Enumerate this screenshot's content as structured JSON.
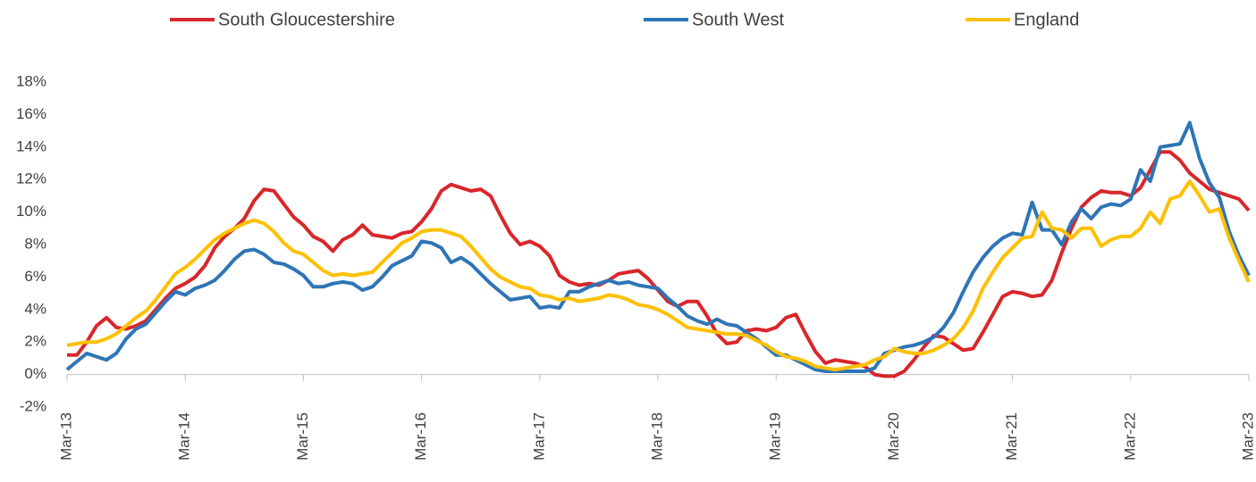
{
  "chart_data": {
    "type": "line",
    "categories": [
      "Mar-13",
      null,
      null,
      null,
      null,
      null,
      null,
      null,
      null,
      null,
      null,
      null,
      "Mar-14",
      null,
      null,
      null,
      null,
      null,
      null,
      null,
      null,
      null,
      null,
      null,
      "Mar-15",
      null,
      null,
      null,
      null,
      null,
      null,
      null,
      null,
      null,
      null,
      null,
      "Mar-16",
      null,
      null,
      null,
      null,
      null,
      null,
      null,
      null,
      null,
      null,
      null,
      "Mar-17",
      null,
      null,
      null,
      null,
      null,
      null,
      null,
      null,
      null,
      null,
      null,
      "Mar-18",
      null,
      null,
      null,
      null,
      null,
      null,
      null,
      null,
      null,
      null,
      null,
      "Mar-19",
      null,
      null,
      null,
      null,
      null,
      null,
      null,
      null,
      null,
      null,
      null,
      "Mar-20",
      null,
      null,
      null,
      null,
      null,
      null,
      null,
      null,
      null,
      null,
      null,
      "Mar-21",
      null,
      null,
      null,
      null,
      null,
      null,
      null,
      null,
      null,
      null,
      null,
      "Mar-22",
      null,
      null,
      null,
      null,
      null,
      null,
      null,
      null,
      null,
      null,
      null,
      "Mar-23"
    ],
    "series": [
      {
        "name": "South Gloucestershire",
        "color": "#d9262a",
        "values": [
          1.2,
          1.2,
          2.0,
          3.0,
          3.5,
          2.9,
          2.8,
          3.0,
          3.3,
          4.0,
          4.7,
          5.3,
          5.6,
          6.0,
          6.7,
          7.8,
          8.5,
          9.0,
          9.6,
          10.7,
          11.4,
          11.3,
          10.5,
          9.7,
          9.2,
          8.5,
          8.2,
          7.6,
          8.3,
          8.6,
          9.2,
          8.6,
          8.5,
          8.4,
          8.7,
          8.8,
          9.4,
          10.2,
          11.3,
          11.7,
          11.5,
          11.3,
          11.4,
          11.0,
          9.8,
          8.7,
          8.0,
          8.2,
          7.9,
          7.3,
          6.1,
          5.7,
          5.5,
          5.6,
          5.5,
          5.8,
          6.2,
          6.3,
          6.4,
          5.9,
          5.2,
          4.5,
          4.2,
          4.5,
          4.5,
          3.6,
          2.5,
          1.9,
          2.0,
          2.7,
          2.8,
          2.7,
          2.9,
          3.5,
          3.7,
          2.5,
          1.4,
          0.7,
          0.9,
          0.8,
          0.7,
          0.5,
          0.0,
          -0.1,
          -0.1,
          0.2,
          0.9,
          1.7,
          2.4,
          2.3,
          1.9,
          1.5,
          1.6,
          2.6,
          3.7,
          4.8,
          5.1,
          5.0,
          4.8,
          4.9,
          5.8,
          7.5,
          9.0,
          10.3,
          10.9,
          11.3,
          11.2,
          11.2,
          11.0,
          11.5,
          12.6,
          13.7,
          13.7,
          13.2,
          12.4,
          11.9,
          11.4,
          11.2,
          11.0,
          10.8,
          10.1
        ]
      },
      {
        "name": "South West",
        "color": "#2e75b6",
        "values": [
          0.3,
          0.8,
          1.3,
          1.1,
          0.9,
          1.3,
          2.2,
          2.8,
          3.1,
          3.8,
          4.5,
          5.1,
          4.9,
          5.3,
          5.5,
          5.8,
          6.4,
          7.1,
          7.6,
          7.7,
          7.4,
          6.9,
          6.8,
          6.5,
          6.1,
          5.4,
          5.4,
          5.6,
          5.7,
          5.6,
          5.2,
          5.4,
          6.0,
          6.7,
          7.0,
          7.3,
          8.2,
          8.1,
          7.8,
          6.9,
          7.2,
          6.8,
          6.2,
          5.6,
          5.1,
          4.6,
          4.7,
          4.8,
          4.1,
          4.2,
          4.1,
          5.1,
          5.1,
          5.4,
          5.6,
          5.8,
          5.6,
          5.7,
          5.5,
          5.4,
          5.3,
          4.7,
          4.2,
          3.6,
          3.3,
          3.1,
          3.4,
          3.1,
          3.0,
          2.6,
          2.2,
          1.7,
          1.2,
          1.2,
          0.9,
          0.6,
          0.3,
          0.2,
          0.2,
          0.2,
          0.2,
          0.2,
          0.4,
          1.3,
          1.5,
          1.7,
          1.8,
          2.0,
          2.3,
          2.9,
          3.8,
          5.1,
          6.3,
          7.2,
          7.9,
          8.4,
          8.7,
          8.6,
          10.6,
          8.9,
          8.9,
          8.0,
          9.4,
          10.2,
          9.6,
          10.3,
          10.5,
          10.4,
          10.8,
          12.6,
          11.9,
          14.0,
          14.1,
          14.2,
          15.5,
          13.3,
          11.8,
          10.9,
          8.8,
          7.3,
          6.1
        ]
      },
      {
        "name": "England",
        "color": "#ffc000",
        "values": [
          1.8,
          1.9,
          2.0,
          2.0,
          2.2,
          2.5,
          3.0,
          3.5,
          3.9,
          4.6,
          5.4,
          6.2,
          6.6,
          7.1,
          7.7,
          8.3,
          8.7,
          9.0,
          9.3,
          9.5,
          9.3,
          8.8,
          8.1,
          7.6,
          7.4,
          6.9,
          6.4,
          6.1,
          6.2,
          6.1,
          6.2,
          6.3,
          6.9,
          7.5,
          8.1,
          8.4,
          8.8,
          8.9,
          8.9,
          8.7,
          8.5,
          7.9,
          7.2,
          6.5,
          6.0,
          5.7,
          5.4,
          5.3,
          4.9,
          4.8,
          4.6,
          4.7,
          4.5,
          4.6,
          4.7,
          4.9,
          4.8,
          4.6,
          4.3,
          4.2,
          4.0,
          3.7,
          3.3,
          2.9,
          2.8,
          2.7,
          2.6,
          2.5,
          2.5,
          2.4,
          2.1,
          1.8,
          1.4,
          1.1,
          1.0,
          0.8,
          0.5,
          0.4,
          0.3,
          0.4,
          0.5,
          0.6,
          0.9,
          1.1,
          1.6,
          1.4,
          1.3,
          1.3,
          1.5,
          1.8,
          2.2,
          2.9,
          3.9,
          5.3,
          6.3,
          7.2,
          7.8,
          8.4,
          8.5,
          10.0,
          9.0,
          8.9,
          8.4,
          9.0,
          9.0,
          7.9,
          8.3,
          8.5,
          8.5,
          9.0,
          10.0,
          9.3,
          10.8,
          11.0,
          11.9,
          11.0,
          10.0,
          10.2,
          8.4,
          7.0,
          5.7
        ]
      }
    ],
    "ylim": [
      -2,
      18
    ],
    "yticks": [
      {
        "value": -2,
        "label": "-2%"
      },
      {
        "value": 0,
        "label": "0%"
      },
      {
        "value": 2,
        "label": "2%"
      },
      {
        "value": 4,
        "label": "4%"
      },
      {
        "value": 6,
        "label": "6%"
      },
      {
        "value": 8,
        "label": "8%"
      },
      {
        "value": 10,
        "label": "10%"
      },
      {
        "value": 12,
        "label": "12%"
      },
      {
        "value": 14,
        "label": "14%"
      },
      {
        "value": 16,
        "label": "16%"
      },
      {
        "value": 18,
        "label": "18%"
      }
    ],
    "legend": "top"
  }
}
